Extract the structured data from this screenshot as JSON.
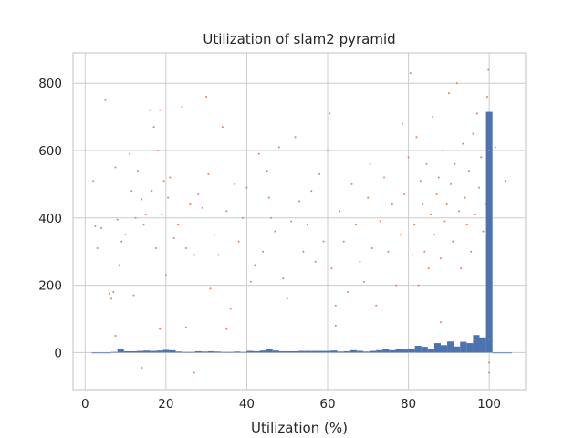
{
  "chart_data": {
    "type": "scatter",
    "title": "Utilization of slam2 pyramid",
    "xlabel": "Utilization (%)",
    "ylabel": "",
    "xlim": [
      -3,
      109
    ],
    "ylim": [
      -110,
      890
    ],
    "xticks": [
      0,
      20,
      40,
      60,
      80,
      100
    ],
    "yticks": [
      0,
      200,
      400,
      600,
      800
    ],
    "grid": true,
    "colors": {
      "histogram": "#4c72b0",
      "scatter": "#dd8452"
    },
    "histogram": {
      "bin_width": 1.6,
      "bins": [
        {
          "x": 1.6,
          "count": 0
        },
        {
          "x": 3.2,
          "count": 0
        },
        {
          "x": 4.8,
          "count": 0
        },
        {
          "x": 6.4,
          "count": 2
        },
        {
          "x": 8.0,
          "count": 10
        },
        {
          "x": 9.6,
          "count": 4
        },
        {
          "x": 11.2,
          "count": 4
        },
        {
          "x": 12.8,
          "count": 5
        },
        {
          "x": 14.4,
          "count": 6
        },
        {
          "x": 16.0,
          "count": 5
        },
        {
          "x": 17.6,
          "count": 6
        },
        {
          "x": 19.2,
          "count": 8
        },
        {
          "x": 20.8,
          "count": 7
        },
        {
          "x": 22.4,
          "count": 3
        },
        {
          "x": 24.0,
          "count": 2
        },
        {
          "x": 25.6,
          "count": 2
        },
        {
          "x": 27.2,
          "count": 4
        },
        {
          "x": 28.8,
          "count": 3
        },
        {
          "x": 30.4,
          "count": 4
        },
        {
          "x": 32.0,
          "count": 3
        },
        {
          "x": 33.6,
          "count": 2
        },
        {
          "x": 35.2,
          "count": 2
        },
        {
          "x": 36.8,
          "count": 3
        },
        {
          "x": 38.4,
          "count": 2
        },
        {
          "x": 40.0,
          "count": 5
        },
        {
          "x": 41.6,
          "count": 4
        },
        {
          "x": 43.2,
          "count": 6
        },
        {
          "x": 44.8,
          "count": 12
        },
        {
          "x": 46.4,
          "count": 6
        },
        {
          "x": 48.0,
          "count": 4
        },
        {
          "x": 49.6,
          "count": 4
        },
        {
          "x": 51.2,
          "count": 4
        },
        {
          "x": 52.8,
          "count": 5
        },
        {
          "x": 54.4,
          "count": 5
        },
        {
          "x": 56.0,
          "count": 5
        },
        {
          "x": 57.6,
          "count": 5
        },
        {
          "x": 59.2,
          "count": 5
        },
        {
          "x": 60.8,
          "count": 6
        },
        {
          "x": 62.4,
          "count": 3
        },
        {
          "x": 64.0,
          "count": 4
        },
        {
          "x": 65.6,
          "count": 7
        },
        {
          "x": 67.2,
          "count": 5
        },
        {
          "x": 68.8,
          "count": 3
        },
        {
          "x": 70.4,
          "count": 5
        },
        {
          "x": 72.0,
          "count": 7
        },
        {
          "x": 73.6,
          "count": 10
        },
        {
          "x": 75.2,
          "count": 7
        },
        {
          "x": 76.8,
          "count": 12
        },
        {
          "x": 78.4,
          "count": 9
        },
        {
          "x": 80.0,
          "count": 12
        },
        {
          "x": 81.6,
          "count": 20
        },
        {
          "x": 83.2,
          "count": 17
        },
        {
          "x": 84.8,
          "count": 10
        },
        {
          "x": 86.4,
          "count": 28
        },
        {
          "x": 88.0,
          "count": 22
        },
        {
          "x": 89.6,
          "count": 33
        },
        {
          "x": 91.2,
          "count": 18
        },
        {
          "x": 92.8,
          "count": 32
        },
        {
          "x": 94.4,
          "count": 28
        },
        {
          "x": 96.0,
          "count": 52
        },
        {
          "x": 97.6,
          "count": 45
        },
        {
          "x": 99.2,
          "count": 715
        },
        {
          "x": 100.8,
          "count": 0
        },
        {
          "x": 102.4,
          "count": 0
        },
        {
          "x": 104.0,
          "count": 0
        }
      ]
    },
    "scatter": {
      "name": "",
      "points": [
        [
          2,
          510
        ],
        [
          2.5,
          375
        ],
        [
          3,
          310
        ],
        [
          4,
          370
        ],
        [
          5,
          750
        ],
        [
          6,
          175
        ],
        [
          6.5,
          160
        ],
        [
          7,
          180
        ],
        [
          7.5,
          550
        ],
        [
          8,
          395
        ],
        [
          8.5,
          260
        ],
        [
          9,
          330
        ],
        [
          10,
          350
        ],
        [
          11,
          590
        ],
        [
          11.5,
          480
        ],
        [
          12,
          170
        ],
        [
          12.5,
          400
        ],
        [
          13,
          540
        ],
        [
          14,
          455
        ],
        [
          14.5,
          380
        ],
        [
          15,
          410
        ],
        [
          16,
          720
        ],
        [
          16.5,
          480
        ],
        [
          17,
          670
        ],
        [
          17.5,
          310
        ],
        [
          18,
          600
        ],
        [
          18.5,
          720
        ],
        [
          19,
          410
        ],
        [
          19.5,
          510
        ],
        [
          20,
          230
        ],
        [
          20.5,
          460
        ],
        [
          21,
          520
        ],
        [
          22,
          340
        ],
        [
          23,
          380
        ],
        [
          24,
          730
        ],
        [
          25,
          310
        ],
        [
          26,
          440
        ],
        [
          27,
          290
        ],
        [
          28,
          470
        ],
        [
          29,
          430
        ],
        [
          30,
          760
        ],
        [
          30.5,
          530
        ],
        [
          31,
          190
        ],
        [
          32,
          350
        ],
        [
          33,
          290
        ],
        [
          34,
          670
        ],
        [
          35,
          420
        ],
        [
          36,
          130
        ],
        [
          37,
          500
        ],
        [
          38,
          330
        ],
        [
          39,
          400
        ],
        [
          40,
          490
        ],
        [
          41,
          210
        ],
        [
          42,
          260
        ],
        [
          43,
          590
        ],
        [
          44,
          300
        ],
        [
          45,
          540
        ],
        [
          45.5,
          460
        ],
        [
          46,
          400
        ],
        [
          47,
          360
        ],
        [
          48,
          610
        ],
        [
          49,
          220
        ],
        [
          50,
          160
        ],
        [
          51,
          390
        ],
        [
          52,
          640
        ],
        [
          53,
          450
        ],
        [
          54,
          300
        ],
        [
          55,
          380
        ],
        [
          56,
          480
        ],
        [
          57,
          270
        ],
        [
          58,
          530
        ],
        [
          59,
          330
        ],
        [
          60,
          600
        ],
        [
          60.5,
          710
        ],
        [
          61,
          250
        ],
        [
          62,
          140
        ],
        [
          63,
          420
        ],
        [
          64,
          330
        ],
        [
          65,
          180
        ],
        [
          66,
          500
        ],
        [
          67,
          380
        ],
        [
          68,
          270
        ],
        [
          69,
          210
        ],
        [
          70,
          460
        ],
        [
          70.5,
          560
        ],
        [
          71,
          310
        ],
        [
          72,
          140
        ],
        [
          73,
          390
        ],
        [
          74,
          520
        ],
        [
          75,
          300
        ],
        [
          76,
          440
        ],
        [
          77,
          200
        ],
        [
          78,
          350
        ],
        [
          78.5,
          680
        ],
        [
          79,
          470
        ],
        [
          80,
          580
        ],
        [
          80.5,
          830
        ],
        [
          81,
          290
        ],
        [
          81.5,
          380
        ],
        [
          82,
          640
        ],
        [
          82.5,
          200
        ],
        [
          83,
          510
        ],
        [
          83.5,
          440
        ],
        [
          84,
          300
        ],
        [
          84.5,
          560
        ],
        [
          85,
          250
        ],
        [
          85.5,
          410
        ],
        [
          86,
          700
        ],
        [
          86.5,
          350
        ],
        [
          87,
          470
        ],
        [
          87.5,
          520
        ],
        [
          88,
          280
        ],
        [
          88.5,
          600
        ],
        [
          89,
          390
        ],
        [
          89.5,
          440
        ],
        [
          90,
          770
        ],
        [
          90.5,
          500
        ],
        [
          91,
          330
        ],
        [
          91.5,
          560
        ],
        [
          92,
          800
        ],
        [
          92.5,
          420
        ],
        [
          93,
          250
        ],
        [
          93.5,
          620
        ],
        [
          94,
          460
        ],
        [
          94.5,
          380
        ],
        [
          95,
          540
        ],
        [
          95.5,
          300
        ],
        [
          96,
          650
        ],
        [
          96.5,
          410
        ],
        [
          97,
          710
        ],
        [
          97.5,
          490
        ],
        [
          98,
          580
        ],
        [
          98.5,
          360
        ],
        [
          99,
          440
        ],
        [
          99.5,
          760
        ],
        [
          100,
          600
        ],
        [
          100,
          40
        ],
        [
          100,
          -30
        ],
        [
          100,
          -60
        ],
        [
          99.8,
          840
        ],
        [
          101.5,
          610
        ],
        [
          104,
          510
        ],
        [
          27,
          -60
        ],
        [
          14,
          -45
        ],
        [
          7.5,
          50
        ],
        [
          18.5,
          70
        ],
        [
          25,
          75
        ],
        [
          35,
          70
        ],
        [
          62,
          80
        ],
        [
          88,
          90
        ]
      ]
    }
  }
}
